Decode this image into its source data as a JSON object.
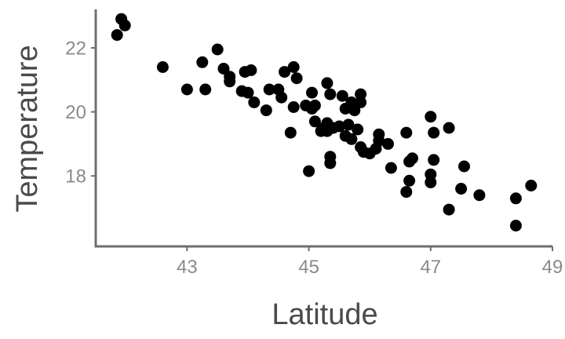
{
  "chart_data": {
    "type": "scatter",
    "xlabel": "Latitude",
    "ylabel": "Temperature",
    "xlim": [
      41.5,
      49.0
    ],
    "ylim": [
      15.8,
      23.2
    ],
    "x_ticks": [
      43,
      45,
      47,
      49
    ],
    "x_tick_labels": [
      "43",
      "45",
      "47",
      "49"
    ],
    "y_ticks": [
      18,
      20,
      22
    ],
    "y_tick_labels": [
      "18",
      "20",
      "22"
    ],
    "grid": false,
    "legend": "none",
    "point_color": "#000000",
    "points": [
      {
        "x": 41.85,
        "y": 22.4
      },
      {
        "x": 41.92,
        "y": 22.9
      },
      {
        "x": 41.98,
        "y": 22.7
      },
      {
        "x": 42.6,
        "y": 21.4
      },
      {
        "x": 43.0,
        "y": 20.7
      },
      {
        "x": 43.25,
        "y": 21.55
      },
      {
        "x": 43.3,
        "y": 20.7
      },
      {
        "x": 43.5,
        "y": 21.95
      },
      {
        "x": 43.6,
        "y": 21.35
      },
      {
        "x": 43.7,
        "y": 20.95
      },
      {
        "x": 43.7,
        "y": 21.1
      },
      {
        "x": 43.9,
        "y": 20.65
      },
      {
        "x": 43.95,
        "y": 21.25
      },
      {
        "x": 44.0,
        "y": 20.6
      },
      {
        "x": 44.05,
        "y": 21.3
      },
      {
        "x": 44.1,
        "y": 20.3
      },
      {
        "x": 44.3,
        "y": 20.05
      },
      {
        "x": 44.35,
        "y": 20.7
      },
      {
        "x": 44.5,
        "y": 20.7
      },
      {
        "x": 44.55,
        "y": 20.45
      },
      {
        "x": 44.6,
        "y": 21.25
      },
      {
        "x": 44.7,
        "y": 19.35
      },
      {
        "x": 44.75,
        "y": 20.15
      },
      {
        "x": 44.75,
        "y": 21.4
      },
      {
        "x": 44.8,
        "y": 21.05
      },
      {
        "x": 44.95,
        "y": 20.2
      },
      {
        "x": 45.0,
        "y": 18.15
      },
      {
        "x": 45.05,
        "y": 20.6
      },
      {
        "x": 45.05,
        "y": 20.1
      },
      {
        "x": 45.1,
        "y": 20.2
      },
      {
        "x": 45.1,
        "y": 19.7
      },
      {
        "x": 45.2,
        "y": 19.4
      },
      {
        "x": 45.25,
        "y": 19.5
      },
      {
        "x": 45.3,
        "y": 19.65
      },
      {
        "x": 45.3,
        "y": 19.4
      },
      {
        "x": 45.3,
        "y": 20.9
      },
      {
        "x": 45.35,
        "y": 20.55
      },
      {
        "x": 45.35,
        "y": 18.6
      },
      {
        "x": 45.35,
        "y": 18.4
      },
      {
        "x": 45.4,
        "y": 19.5
      },
      {
        "x": 45.5,
        "y": 19.55
      },
      {
        "x": 45.55,
        "y": 20.5
      },
      {
        "x": 45.6,
        "y": 19.25
      },
      {
        "x": 45.6,
        "y": 20.1
      },
      {
        "x": 45.65,
        "y": 19.6
      },
      {
        "x": 45.7,
        "y": 20.3
      },
      {
        "x": 45.7,
        "y": 19.15
      },
      {
        "x": 45.75,
        "y": 20.05
      },
      {
        "x": 45.8,
        "y": 19.45
      },
      {
        "x": 45.85,
        "y": 20.55
      },
      {
        "x": 45.85,
        "y": 20.3
      },
      {
        "x": 45.85,
        "y": 18.9
      },
      {
        "x": 45.9,
        "y": 18.75
      },
      {
        "x": 46.0,
        "y": 18.7
      },
      {
        "x": 46.1,
        "y": 18.85
      },
      {
        "x": 46.15,
        "y": 19.1
      },
      {
        "x": 46.15,
        "y": 19.3
      },
      {
        "x": 46.3,
        "y": 19.0
      },
      {
        "x": 46.35,
        "y": 18.25
      },
      {
        "x": 46.6,
        "y": 19.35
      },
      {
        "x": 46.6,
        "y": 17.5
      },
      {
        "x": 46.65,
        "y": 17.85
      },
      {
        "x": 46.65,
        "y": 18.45
      },
      {
        "x": 46.7,
        "y": 18.55
      },
      {
        "x": 47.0,
        "y": 18.05
      },
      {
        "x": 47.0,
        "y": 17.8
      },
      {
        "x": 47.0,
        "y": 19.85
      },
      {
        "x": 47.05,
        "y": 19.35
      },
      {
        "x": 47.05,
        "y": 18.5
      },
      {
        "x": 47.3,
        "y": 16.95
      },
      {
        "x": 47.3,
        "y": 19.5
      },
      {
        "x": 47.5,
        "y": 17.6
      },
      {
        "x": 47.55,
        "y": 18.3
      },
      {
        "x": 47.8,
        "y": 17.4
      },
      {
        "x": 48.4,
        "y": 17.3
      },
      {
        "x": 48.4,
        "y": 16.45
      },
      {
        "x": 48.65,
        "y": 17.7
      }
    ]
  }
}
